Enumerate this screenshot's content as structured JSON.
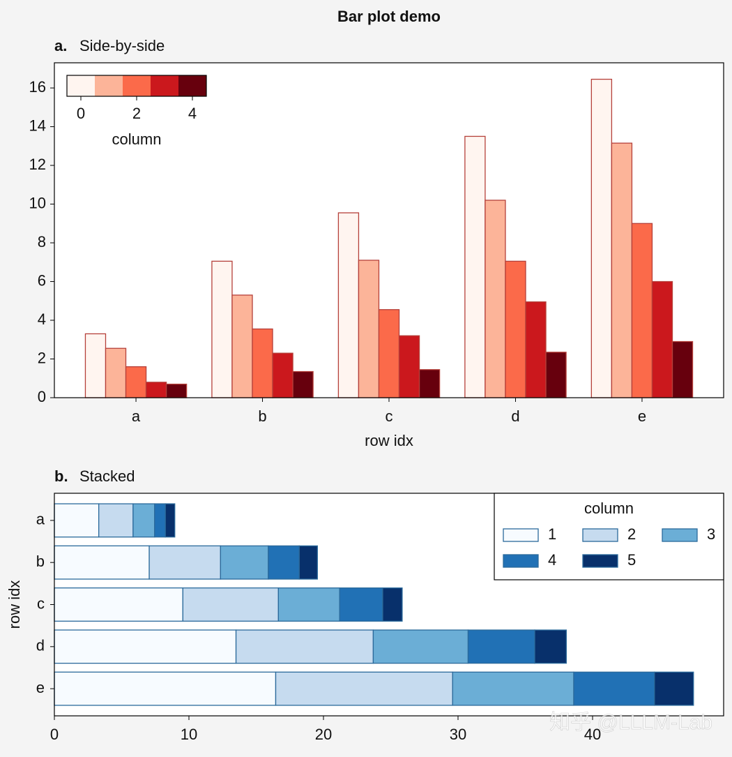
{
  "title": "Bar plot demo",
  "chart_data": [
    {
      "type": "bar",
      "panel_label": "a.",
      "title": "Side-by-side",
      "xlabel": "row idx",
      "categories": [
        "a",
        "b",
        "c",
        "d",
        "e"
      ],
      "ylim": [
        0,
        17.3
      ],
      "yticks": [
        0,
        2,
        4,
        6,
        8,
        10,
        12,
        14,
        16
      ],
      "edgecolor": "#b5403a",
      "series": [
        {
          "color": "#fff5f0",
          "values": [
            3.3,
            7.05,
            9.55,
            13.5,
            16.45
          ]
        },
        {
          "color": "#fcb499",
          "values": [
            2.55,
            5.3,
            7.1,
            10.2,
            13.15
          ]
        },
        {
          "color": "#fb6a4a",
          "values": [
            1.6,
            3.55,
            4.55,
            7.05,
            9.0
          ]
        },
        {
          "color": "#cb181d",
          "values": [
            0.8,
            2.3,
            3.2,
            4.95,
            6.0
          ]
        },
        {
          "color": "#67000d",
          "values": [
            0.7,
            1.35,
            1.45,
            2.35,
            2.9
          ]
        }
      ],
      "colorbar": {
        "label": "column",
        "ticks": [
          0,
          2,
          4
        ],
        "loc": "upper left"
      }
    },
    {
      "type": "barh",
      "stacked": true,
      "panel_label": "b.",
      "title": "Stacked",
      "ylabel": "row idx",
      "categories": [
        "a",
        "b",
        "c",
        "d",
        "e"
      ],
      "xlim": [
        0,
        49.74
      ],
      "xticks": [
        0,
        10,
        20,
        30,
        40
      ],
      "edgecolor": "#2b6a9b",
      "series": [
        {
          "name": "1",
          "color": "#f7fbff",
          "values": [
            3.3,
            7.05,
            9.55,
            13.5,
            16.45
          ]
        },
        {
          "name": "2",
          "color": "#c6dbef",
          "values": [
            2.55,
            5.3,
            7.1,
            10.2,
            13.15
          ]
        },
        {
          "name": "3",
          "color": "#6baed6",
          "values": [
            1.6,
            3.55,
            4.55,
            7.05,
            9.0
          ]
        },
        {
          "name": "4",
          "color": "#2171b5",
          "values": [
            0.8,
            2.3,
            3.2,
            4.95,
            6.0
          ]
        },
        {
          "name": "5",
          "color": "#08306b",
          "values": [
            0.7,
            1.35,
            1.45,
            2.35,
            2.9
          ]
        }
      ],
      "legend": {
        "title": "column",
        "loc": "upper right",
        "ncol": 3
      }
    }
  ],
  "watermark": "知乎 @LLLM-Lab"
}
